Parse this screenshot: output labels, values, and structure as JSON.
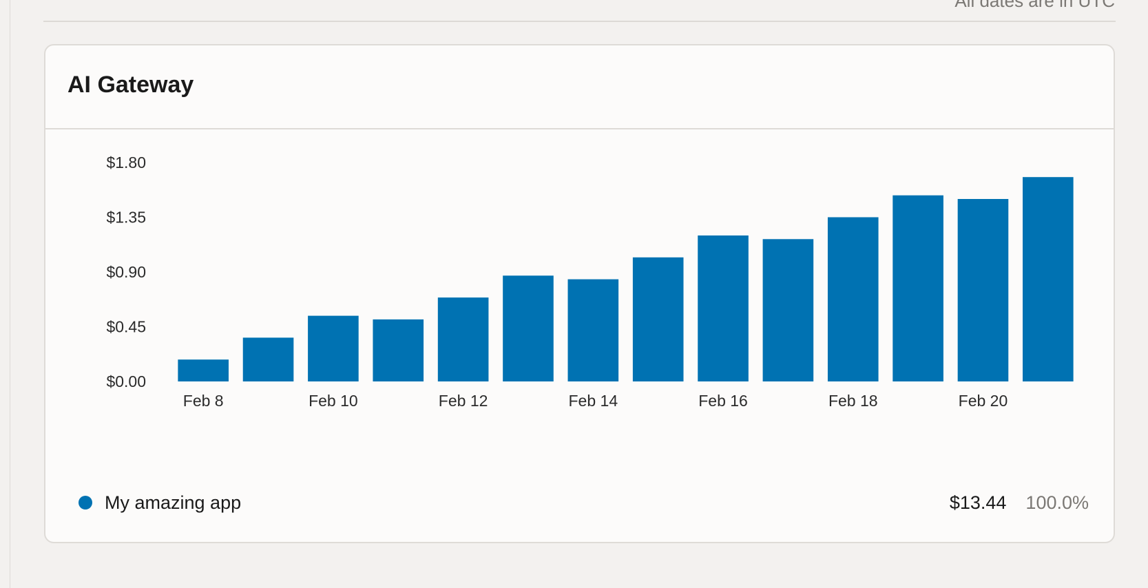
{
  "header": {
    "timezone_note": "All dates are in UTC"
  },
  "card": {
    "title": "AI Gateway"
  },
  "colors": {
    "series": "#0072b2"
  },
  "legend": {
    "items": [
      {
        "label": "My amazing app",
        "total": "$13.44",
        "percent": "100.0%"
      }
    ]
  },
  "chart_data": {
    "type": "bar",
    "title": "",
    "xlabel": "",
    "ylabel": "",
    "categories": [
      "Feb 8",
      "Feb 9",
      "Feb 10",
      "Feb 11",
      "Feb 12",
      "Feb 13",
      "Feb 14",
      "Feb 15",
      "Feb 16",
      "Feb 17",
      "Feb 18",
      "Feb 19",
      "Feb 20",
      "Feb 21"
    ],
    "x_tick_labels": [
      "Feb 8",
      "Feb 10",
      "Feb 12",
      "Feb 14",
      "Feb 16",
      "Feb 18",
      "Feb 20"
    ],
    "y_tick_labels": [
      "$0.00",
      "$0.45",
      "$0.90",
      "$1.35",
      "$1.80"
    ],
    "y_ticks": [
      0,
      0.45,
      0.9,
      1.35,
      1.8
    ],
    "ylim": [
      0,
      1.8
    ],
    "grid": false,
    "legend_position": "bottom",
    "series": [
      {
        "name": "My amazing app",
        "values": [
          0.18,
          0.36,
          0.54,
          0.51,
          0.69,
          0.87,
          0.84,
          1.02,
          1.2,
          1.17,
          1.35,
          1.53,
          1.5,
          1.68
        ]
      }
    ]
  }
}
